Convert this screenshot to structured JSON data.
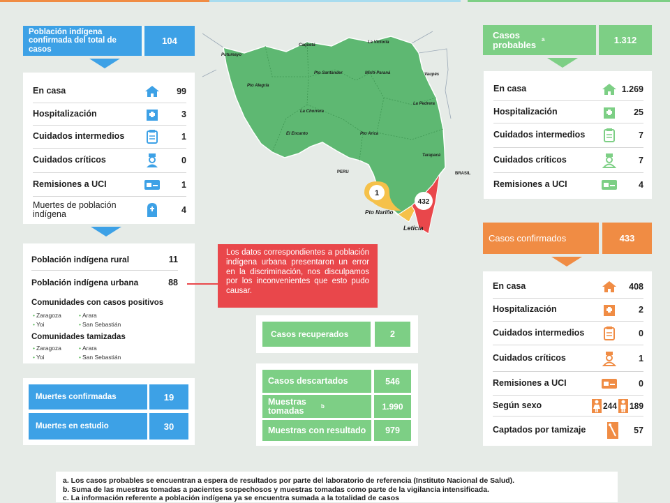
{
  "indigena": {
    "header_label": "Población indígena confirmada del total de casos",
    "header_value": "104",
    "rows": [
      {
        "label": "En casa",
        "value": "99",
        "icon": "house-icon"
      },
      {
        "label": "Hospitalización",
        "value": "3",
        "icon": "hospital-icon"
      },
      {
        "label": "Cuidados intermedios",
        "value": "1",
        "icon": "clipboard-icon"
      },
      {
        "label": "Cuidados críticos",
        "value": "0",
        "icon": "nurse-icon"
      },
      {
        "label": "Remisiones a UCI",
        "value": "1",
        "icon": "ambulance-icon"
      },
      {
        "label": "Muertes de población indígena",
        "value": "4",
        "icon": "tombstone-icon"
      }
    ],
    "rural_label": "Población indígena rural",
    "rural_value": "11",
    "urbana_label": "Población indígena urbana",
    "urbana_value": "88",
    "comunidades_positivos_label": "Comunidades con casos positivos",
    "comunidades_positivos": [
      "Zaragoza",
      "Arara",
      "Yoi",
      "San Sebastián"
    ],
    "comunidades_tamizadas_label": "Comunidades tamizadas",
    "comunidades_tamizadas": [
      "Zaragoza",
      "Arara",
      "Yoi",
      "San Sebastián"
    ]
  },
  "muertes": {
    "confirmadas_label": "Muertes confirmadas",
    "confirmadas_value": "19",
    "estudio_label": "Muertes en estudio",
    "estudio_value": "30"
  },
  "nota_error": "Los datos correspondientes a población indígena urbana presentaron un error en la discriminación, nos disculpamos por los inconvenientes que esto pudo causar.",
  "recuperados": {
    "label": "Casos recuperados",
    "value": "2"
  },
  "laboratorio": [
    {
      "label": "Casos descartados",
      "value": "546",
      "sup": ""
    },
    {
      "label": "Muestras tomadas",
      "value": "1.990",
      "sup": "b"
    },
    {
      "label": "Muestras con resultado",
      "value": "979",
      "sup": ""
    }
  ],
  "probables": {
    "header_label": "Casos probables",
    "sup": "a",
    "header_value": "1.312",
    "rows": [
      {
        "label": "En casa",
        "value": "1.269",
        "icon": "house-icon"
      },
      {
        "label": "Hospitalización",
        "value": "25",
        "icon": "hospital-icon"
      },
      {
        "label": "Cuidados intermedios",
        "value": "7",
        "icon": "clipboard-icon"
      },
      {
        "label": "Cuidados críticos",
        "value": "7",
        "icon": "nurse-icon"
      },
      {
        "label": "Remisiones a UCI",
        "value": "4",
        "icon": "ambulance-icon"
      }
    ]
  },
  "confirmados": {
    "header_label": "Casos confirmados",
    "header_value": "433",
    "rows": [
      {
        "label": "En casa",
        "value": "408",
        "icon": "house-icon"
      },
      {
        "label": "Hospitalización",
        "value": "2",
        "icon": "hospital-icon"
      },
      {
        "label": "Cuidados intermedios",
        "value": "0",
        "icon": "clipboard-icon"
      },
      {
        "label": "Cuidados críticos",
        "value": "1",
        "icon": "nurse-icon"
      },
      {
        "label": "Remisiones a UCI",
        "value": "0",
        "icon": "ambulance-icon"
      }
    ],
    "sexo_label": "Según sexo",
    "sexo_mujeres": "244",
    "sexo_hombres": "189",
    "tamizaje_label": "Captados por tamizaje",
    "tamizaje_value": "57"
  },
  "mapa": {
    "municipios": [
      "Putumayo",
      "Caquetá",
      "La Victoria",
      "Vaupés",
      "Pto Santander",
      "Mirití-Paraná",
      "Pto Alegría",
      "La Chorrera",
      "La Pedrera",
      "El Encanto",
      "Pto Arica",
      "Tarapacá"
    ],
    "paises": [
      "PERU",
      "BRASIL"
    ],
    "nario_label": "Pto Nariño",
    "nario_value": "1",
    "leticia_label": "Leticia",
    "leticia_value": "432"
  },
  "notas": [
    "a. Los casos probables se encuentran a espera de resultados por parte del laboratorio de referencia (Instituto Nacional de Salud).",
    "b. Suma de las muestras tomadas a pacientes sospechosos y muestras tomadas como parte de la vigilancia intensificada.",
    "c. La información referente a población indígena ya se encuentra sumada a la totalidad de casos"
  ],
  "colors": {
    "blue": "#3da1e6",
    "green": "#7dcf85",
    "orange": "#f08c44",
    "red": "#e9474b"
  }
}
